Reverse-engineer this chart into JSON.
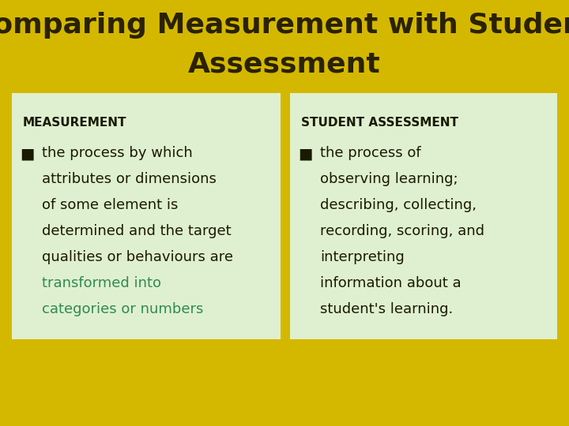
{
  "title_line1": "Comparing Measurement with Student",
  "title_line2": "Assessment",
  "title_color": "#2a2200",
  "title_fontsize": 26,
  "bg_color": "#d4b800",
  "header_bg_color": "#dff0d0",
  "header_left": "MEASUREMENT",
  "header_right": "STUDENT ASSESSMENT",
  "header_fontsize": 11,
  "header_color": "#1a1a00",
  "bullet_left_lines": [
    "the process by which",
    "attributes or dimensions",
    "of some element is",
    "determined and the target",
    "qualities or behaviours are",
    "transformed into",
    "categories or numbers"
  ],
  "bullet_left_colors": [
    "#1a1a00",
    "#1a1a00",
    "#1a1a00",
    "#1a1a00",
    "#1a1a00",
    "#2e8b50",
    "#2e8b50"
  ],
  "bullet_right_lines": [
    "the process of",
    "observing learning;",
    "describing, collecting,",
    "recording, scoring, and",
    "interpreting",
    "information about a",
    "student's learning."
  ],
  "bullet_right_colors": [
    "#1a1a00",
    "#1a1a00",
    "#1a1a00",
    "#1a1a00",
    "#1a1a00",
    "#1a1a00",
    "#1a1a00"
  ],
  "bullet_fontsize": 13,
  "bullet_color": "#1a1a00",
  "square_bullet_char": "■"
}
